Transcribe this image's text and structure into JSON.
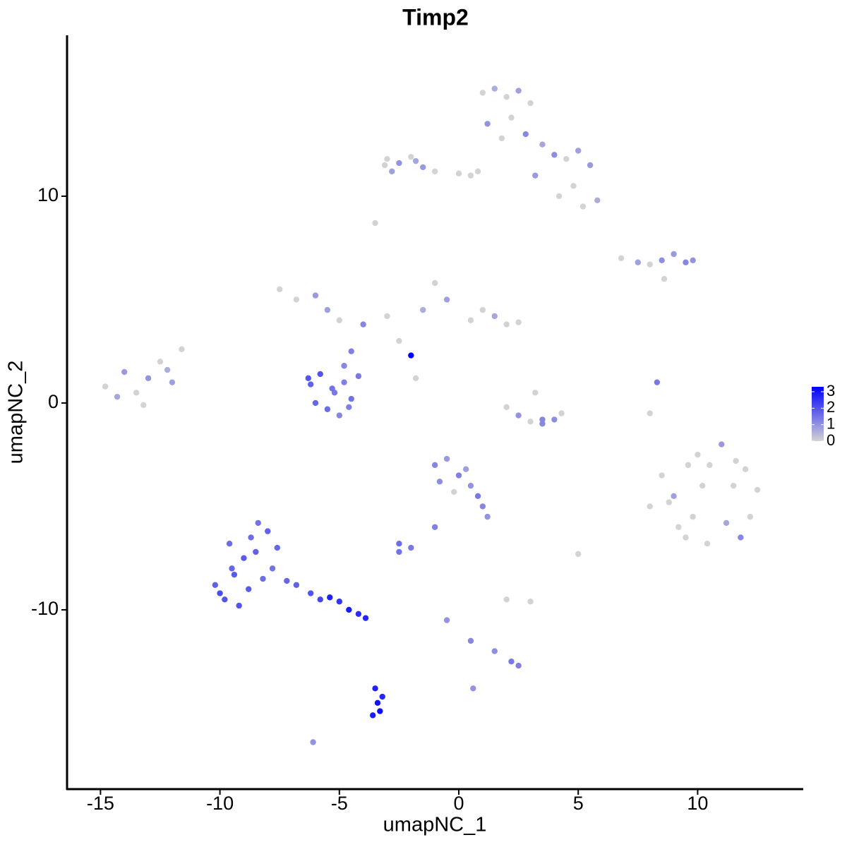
{
  "chart_data": {
    "type": "scatter",
    "title": "Timp2",
    "x_label": "umapNC_1",
    "y_label": "umapNC_2",
    "xlim": [
      -16.4,
      14.42
    ],
    "ylim": [
      -18.67,
      17.78
    ],
    "xticks": [
      -15,
      -10,
      -5,
      0,
      5,
      10
    ],
    "yticks": [
      -10,
      0,
      10
    ],
    "color_low": "#d3d3d3",
    "color_high": "#0000ff",
    "colorlim": [
      0,
      3.3
    ],
    "colorbar_ticks": [
      0,
      1,
      2,
      3
    ],
    "x": [
      1.0,
      1.5,
      2.0,
      2.5,
      3.0,
      1.2,
      2.2,
      3.5,
      4.0,
      4.5,
      5.0,
      5.5,
      4.8,
      5.8,
      1.8,
      0.8,
      3.2,
      4.2,
      5.2,
      2.8,
      -3.0,
      -2.5,
      -2.0,
      -1.5,
      -1.0,
      0.0,
      0.5,
      -2.8,
      -3.1,
      -1.8,
      -14.8,
      -14.0,
      -13.5,
      -13.0,
      -12.5,
      -12.0,
      -11.6,
      -14.3,
      -13.2,
      -12.2,
      -7.5,
      -6.8,
      -6.0,
      -5.0,
      -4.0,
      -3.0,
      -1.5,
      -1.0,
      -0.5,
      0.5,
      1.0,
      1.5,
      2.0,
      2.5,
      -2.5,
      -5.5,
      -4.5,
      -1.8,
      -4.8,
      -2.0,
      -6.2,
      -5.8,
      -5.2,
      -4.8,
      -4.5,
      -5.5,
      -6.0,
      -5.0,
      -4.2,
      -5.3,
      -6.3,
      -4.6,
      -10.2,
      -9.8,
      -9.5,
      -9.0,
      -8.7,
      -8.4,
      -8.0,
      -7.6,
      -9.2,
      -8.8,
      -8.2,
      -7.8,
      -10.0,
      -9.6,
      -7.2,
      -6.8,
      -6.2,
      -5.8,
      -5.4,
      -5.0,
      -4.6,
      -4.2,
      -3.9,
      -9.4,
      -8.5,
      -3.5,
      -3.4,
      -3.3,
      -3.6,
      -3.2,
      -1.0,
      -0.5,
      0.0,
      0.5,
      0.8,
      1.0,
      -0.2,
      -0.8,
      0.3,
      1.2,
      -2.5,
      -2.0,
      -1.0,
      -0.5,
      0.5,
      1.5,
      2.2,
      2.5,
      2.0,
      3.0,
      3.5,
      -2.5,
      5.0,
      0.6,
      -6.1,
      8.0,
      8.5,
      9.0,
      9.5,
      10.0,
      10.5,
      11.0,
      11.5,
      12.0,
      12.5,
      9.2,
      9.8,
      10.4,
      11.2,
      11.8,
      8.8,
      10.2,
      11.6,
      9.6,
      12.2,
      6.8,
      7.5,
      8.0,
      8.5,
      9.0,
      9.5,
      9.8,
      8.6,
      8.3,
      8.0,
      2.0,
      2.5,
      3.0,
      3.5,
      4.0,
      4.3,
      3.2,
      -3.5
    ],
    "y": [
      15.0,
      15.2,
      14.8,
      15.1,
      14.5,
      13.5,
      13.8,
      12.5,
      12.0,
      11.8,
      12.2,
      11.5,
      10.5,
      9.8,
      12.8,
      11.2,
      11.0,
      10.0,
      9.5,
      13.0,
      11.8,
      11.6,
      11.9,
      11.4,
      11.2,
      11.1,
      11.0,
      11.2,
      11.5,
      11.7,
      0.8,
      1.5,
      0.5,
      1.2,
      2.0,
      1.0,
      2.6,
      0.3,
      -0.1,
      1.6,
      5.5,
      5.0,
      5.2,
      4.0,
      3.8,
      4.2,
      4.5,
      5.8,
      5.0,
      4.0,
      4.5,
      4.2,
      3.8,
      3.9,
      3.0,
      4.5,
      2.5,
      1.2,
      1.8,
      2.3,
      0.9,
      1.4,
      0.5,
      1.0,
      0.2,
      -0.3,
      0.0,
      -0.6,
      1.3,
      0.7,
      1.2,
      -0.2,
      -8.8,
      -9.5,
      -8.0,
      -7.5,
      -6.5,
      -5.8,
      -6.2,
      -7.0,
      -9.8,
      -9.0,
      -8.5,
      -8.0,
      -9.2,
      -6.8,
      -8.6,
      -8.8,
      -9.2,
      -9.5,
      -9.4,
      -9.6,
      -10.0,
      -10.2,
      -10.4,
      -8.3,
      -7.2,
      -13.8,
      -14.5,
      -14.9,
      -15.1,
      -14.2,
      -3.0,
      -2.7,
      -3.5,
      -4.0,
      -4.5,
      -5.0,
      -4.3,
      -3.8,
      -3.2,
      -5.5,
      -6.8,
      -7.0,
      -6.0,
      -10.5,
      -11.5,
      -12.0,
      -12.5,
      -12.7,
      -9.5,
      -9.6,
      -0.8,
      -7.2,
      -7.3,
      -13.8,
      -16.4,
      -5.0,
      -3.5,
      -4.5,
      -6.5,
      -2.5,
      -3.0,
      -2.0,
      -4.0,
      -3.2,
      -4.2,
      -6.0,
      -5.5,
      -6.8,
      -5.8,
      -6.5,
      -4.8,
      -4.0,
      -2.8,
      -3.0,
      -5.5,
      7.0,
      6.8,
      6.7,
      6.9,
      7.2,
      6.8,
      6.9,
      6.0,
      1.0,
      -0.5,
      -0.2,
      -0.6,
      -0.9,
      -1.0,
      -0.8,
      -0.5,
      0.5,
      8.7
    ],
    "expression": [
      0,
      0.6,
      0,
      0.8,
      0,
      1.0,
      0,
      0.7,
      1.1,
      0,
      0.8,
      0.9,
      0,
      0.6,
      0,
      0,
      0.9,
      0,
      0,
      1.2,
      0,
      1.0,
      0,
      0.9,
      0,
      0,
      0,
      0.8,
      0,
      0.7,
      0,
      0.9,
      0,
      1.0,
      0,
      0.8,
      0,
      0.7,
      0,
      0.6,
      0,
      0,
      0.9,
      0,
      1.2,
      0,
      0.6,
      0,
      0.8,
      0,
      0,
      0.7,
      0,
      0,
      0,
      0.8,
      1.3,
      0,
      1.2,
      3.3,
      1.8,
      2.0,
      1.4,
      1.3,
      1.5,
      1.6,
      1.7,
      1.2,
      1.4,
      1.5,
      2.0,
      1.3,
      1.8,
      2.0,
      1.7,
      1.9,
      1.6,
      1.5,
      1.8,
      1.7,
      2.0,
      1.9,
      1.6,
      1.5,
      2.1,
      1.6,
      1.7,
      1.8,
      2.0,
      2.2,
      2.8,
      2.5,
      2.9,
      2.6,
      2.7,
      1.9,
      1.8,
      2.8,
      3.0,
      3.1,
      2.9,
      2.7,
      1.2,
      0.9,
      1.3,
      1.0,
      1.4,
      1.2,
      0,
      1.1,
      0.8,
      1.0,
      1.6,
      1.4,
      1.3,
      1.0,
      1.2,
      1.1,
      1.4,
      1.3,
      0,
      0,
      1.2,
      1.5,
      0,
      1.0,
      1.0,
      0,
      0,
      0.8,
      0,
      0,
      0,
      0.9,
      0,
      0,
      0,
      0,
      0,
      0,
      0.7,
      1.2,
      0,
      0,
      0,
      0,
      0,
      0,
      0.8,
      0,
      1.1,
      0.9,
      1.2,
      1.0,
      0,
      1.4,
      0,
      0,
      1.0,
      0,
      1.2,
      1.1,
      0,
      0,
      0
    ]
  }
}
